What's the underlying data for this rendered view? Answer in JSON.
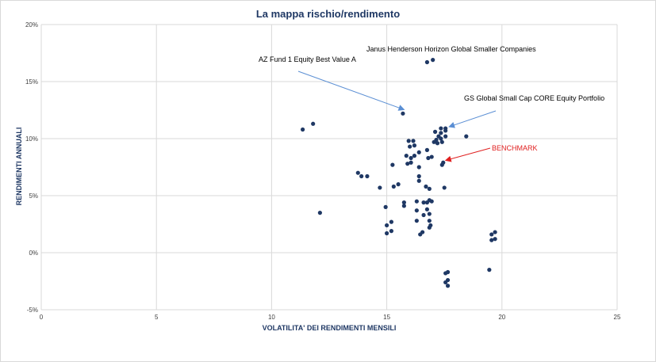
{
  "chart_data": {
    "type": "scatter",
    "title": "La mappa rischio/rendimento",
    "xlabel": "VOLATILITA' DEI RENDIMENTI MENSILI",
    "ylabel": "RENDIMENTI ANNUALI",
    "xlim": [
      0,
      25
    ],
    "ylim": [
      -5,
      20
    ],
    "x_ticks": [
      "0",
      "5",
      "10",
      "15",
      "20",
      "25"
    ],
    "y_ticks": [
      "-5%",
      "0%",
      "5%",
      "10%",
      "15%",
      "20%"
    ],
    "grid": true,
    "marker_color": "#1f3864",
    "points": [
      {
        "x": 11.35,
        "y": 10.8
      },
      {
        "x": 11.8,
        "y": 11.3
      },
      {
        "x": 12.1,
        "y": 3.5
      },
      {
        "x": 13.75,
        "y": 7.0
      },
      {
        "x": 13.9,
        "y": 6.7
      },
      {
        "x": 14.15,
        "y": 6.7
      },
      {
        "x": 14.7,
        "y": 5.7
      },
      {
        "x": 14.95,
        "y": 4.0
      },
      {
        "x": 15.0,
        "y": 2.4
      },
      {
        "x": 15.0,
        "y": 1.7
      },
      {
        "x": 15.2,
        "y": 2.7
      },
      {
        "x": 15.2,
        "y": 1.9
      },
      {
        "x": 15.25,
        "y": 7.7
      },
      {
        "x": 15.3,
        "y": 5.8
      },
      {
        "x": 15.5,
        "y": 6.0
      },
      {
        "x": 15.7,
        "y": 12.2
      },
      {
        "x": 15.75,
        "y": 4.4
      },
      {
        "x": 15.75,
        "y": 4.1
      },
      {
        "x": 15.85,
        "y": 8.5
      },
      {
        "x": 15.9,
        "y": 7.8
      },
      {
        "x": 15.95,
        "y": 9.8
      },
      {
        "x": 16.0,
        "y": 9.3
      },
      {
        "x": 16.05,
        "y": 7.9
      },
      {
        "x": 16.05,
        "y": 8.3
      },
      {
        "x": 16.15,
        "y": 9.8
      },
      {
        "x": 16.2,
        "y": 9.4
      },
      {
        "x": 16.2,
        "y": 8.5
      },
      {
        "x": 16.3,
        "y": 4.5
      },
      {
        "x": 16.3,
        "y": 3.7
      },
      {
        "x": 16.3,
        "y": 2.8
      },
      {
        "x": 16.4,
        "y": 8.8
      },
      {
        "x": 16.4,
        "y": 7.5
      },
      {
        "x": 16.4,
        "y": 6.7
      },
      {
        "x": 16.4,
        "y": 6.3
      },
      {
        "x": 16.45,
        "y": 1.6
      },
      {
        "x": 16.55,
        "y": 1.8
      },
      {
        "x": 16.6,
        "y": 4.4
      },
      {
        "x": 16.6,
        "y": 3.3
      },
      {
        "x": 16.7,
        "y": 5.8
      },
      {
        "x": 16.75,
        "y": 4.4
      },
      {
        "x": 16.75,
        "y": 3.8
      },
      {
        "x": 16.75,
        "y": 9.0
      },
      {
        "x": 16.8,
        "y": 8.3
      },
      {
        "x": 16.85,
        "y": 5.6
      },
      {
        "x": 16.85,
        "y": 4.6
      },
      {
        "x": 16.85,
        "y": 3.4
      },
      {
        "x": 16.85,
        "y": 2.8
      },
      {
        "x": 16.85,
        "y": 2.2
      },
      {
        "x": 16.9,
        "y": 2.4
      },
      {
        "x": 16.95,
        "y": 8.4
      },
      {
        "x": 16.95,
        "y": 4.5
      },
      {
        "x": 16.75,
        "y": 16.7
      },
      {
        "x": 17.0,
        "y": 16.9
      },
      {
        "x": 17.05,
        "y": 9.7
      },
      {
        "x": 17.1,
        "y": 10.6
      },
      {
        "x": 17.15,
        "y": 9.9
      },
      {
        "x": 17.2,
        "y": 9.6
      },
      {
        "x": 17.25,
        "y": 10.2
      },
      {
        "x": 17.35,
        "y": 10.9
      },
      {
        "x": 17.35,
        "y": 10.5
      },
      {
        "x": 17.35,
        "y": 10.0
      },
      {
        "x": 17.4,
        "y": 9.7
      },
      {
        "x": 17.4,
        "y": 7.7
      },
      {
        "x": 17.45,
        "y": 7.9
      },
      {
        "x": 17.5,
        "y": 5.7
      },
      {
        "x": 17.55,
        "y": 10.9
      },
      {
        "x": 17.55,
        "y": 10.7
      },
      {
        "x": 17.55,
        "y": 10.2
      },
      {
        "x": 18.45,
        "y": 10.2
      },
      {
        "x": 17.55,
        "y": -1.8
      },
      {
        "x": 17.65,
        "y": -1.7
      },
      {
        "x": 17.55,
        "y": -2.6
      },
      {
        "x": 17.65,
        "y": -2.4
      },
      {
        "x": 17.65,
        "y": -2.9
      },
      {
        "x": 19.45,
        "y": -1.5
      },
      {
        "x": 19.55,
        "y": 1.6
      },
      {
        "x": 19.55,
        "y": 1.1
      },
      {
        "x": 19.7,
        "y": 1.8
      },
      {
        "x": 19.7,
        "y": 1.2
      }
    ],
    "annotations": [
      {
        "text": "Janus Henderson Horizon Global Smaller Companies",
        "color": "#000000",
        "point": {
          "x": 16.9,
          "y": 17.2
        }
      },
      {
        "text": "AZ Fund 1 Equity Best Value A",
        "color": "#000000",
        "point": {
          "x": 15.65,
          "y": 12.4
        }
      },
      {
        "text": "GS Global Small Cap CORE Equity Portfolio",
        "color": "#000000",
        "point": {
          "x": 17.6,
          "y": 10.9
        }
      },
      {
        "text": "BENCHMARK",
        "color": "#e02020",
        "point": {
          "x": 17.45,
          "y": 7.95
        }
      }
    ]
  }
}
